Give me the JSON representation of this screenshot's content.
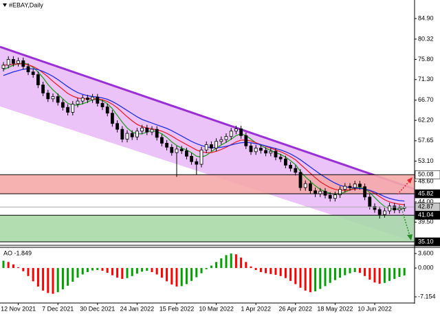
{
  "chart_data": [
    {
      "type": "candlestick",
      "title": "#EBAY,Daily",
      "categories": [
        null,
        null,
        null,
        "12 Nov 2021",
        null,
        null,
        null,
        null,
        null,
        null,
        null,
        "7 Dec 2021",
        null,
        null,
        null,
        null,
        null,
        null,
        null,
        "30 Dec 2021",
        null,
        null,
        null,
        null,
        null,
        null,
        null,
        "24 Jan 2022",
        null,
        null,
        null,
        null,
        null,
        null,
        null,
        "15 Feb 2022",
        null,
        null,
        null,
        null,
        null,
        null,
        null,
        "10 Mar 2022",
        null,
        null,
        null,
        null,
        null,
        null,
        null,
        "1 Apr 2022",
        null,
        null,
        null,
        null,
        null,
        null,
        null,
        "26 Apr 2022",
        null,
        null,
        null,
        null,
        null,
        null,
        null,
        "18 May 2022",
        null,
        null,
        null,
        null,
        null,
        null,
        null,
        "10 Jun 2022",
        null,
        null,
        null,
        null,
        null,
        null
      ],
      "open": [
        73.8,
        74.5,
        75.8,
        74.9,
        75.5,
        74.2,
        73.0,
        72.4,
        70.1,
        68.3,
        67.0,
        67.5,
        66.2,
        65.1,
        64.0,
        65.8,
        66.5,
        67.2,
        66.8,
        67.4,
        66.0,
        65.2,
        63.8,
        61.5,
        60.2,
        58.0,
        59.3,
        58.5,
        59.8,
        60.5,
        59.6,
        60.2,
        58.4,
        57.1,
        56.2,
        55.0,
        55.8,
        55.4,
        54.2,
        53.0,
        52.4,
        55.6,
        56.8,
        56.0,
        57.5,
        57.9,
        58.6,
        59.8,
        60.3,
        58.8,
        56.5,
        55.2,
        56.0,
        55.5,
        54.9,
        55.3,
        54.0,
        53.6,
        52.2,
        51.5,
        50.6,
        47.2,
        48.1,
        46.5,
        45.8,
        46.4,
        45.5,
        44.8,
        45.6,
        46.8,
        47.5,
        47.2,
        48.0,
        47.4,
        45.1,
        43.0,
        42.3,
        41.2,
        42.0,
        43.1,
        42.2,
        42.6
      ],
      "high": [
        75.2,
        76.5,
        76.5,
        76.2,
        76.2,
        74.9,
        73.7,
        73.1,
        70.8,
        69.0,
        68.2,
        68.2,
        66.9,
        65.8,
        66.5,
        67.2,
        67.9,
        67.9,
        68.1,
        68.1,
        66.7,
        65.9,
        64.5,
        62.2,
        60.9,
        60.0,
        60.0,
        60.5,
        61.2,
        61.2,
        60.9,
        60.9,
        59.1,
        57.8,
        56.9,
        56.5,
        56.5,
        56.1,
        54.9,
        53.7,
        56.3,
        57.5,
        57.5,
        58.2,
        58.6,
        59.3,
        60.5,
        61.0,
        61.0,
        59.5,
        57.2,
        56.7,
        56.7,
        56.2,
        56.0,
        56.0,
        54.7,
        54.3,
        52.9,
        52.2,
        51.3,
        48.8,
        48.8,
        47.2,
        47.1,
        47.1,
        46.2,
        46.3,
        47.5,
        48.2,
        48.2,
        48.7,
        48.7,
        48.1,
        45.8,
        43.7,
        43.0,
        42.7,
        43.8,
        43.8,
        43.3,
        43.6
      ],
      "low": [
        73.1,
        73.8,
        74.2,
        74.2,
        73.5,
        72.3,
        71.7,
        69.4,
        67.6,
        66.3,
        66.3,
        65.5,
        64.4,
        63.3,
        63.3,
        65.1,
        65.8,
        66.1,
        66.1,
        65.3,
        64.5,
        63.1,
        60.8,
        59.5,
        57.3,
        57.3,
        57.8,
        57.8,
        59.1,
        58.9,
        58.9,
        57.7,
        56.4,
        55.5,
        54.3,
        49.6,
        54.7,
        53.5,
        52.3,
        50.1,
        51.7,
        54.9,
        55.3,
        55.3,
        56.8,
        57.2,
        57.9,
        59.1,
        58.1,
        55.8,
        54.5,
        54.5,
        54.8,
        54.2,
        54.2,
        53.3,
        52.9,
        51.5,
        50.8,
        49.9,
        46.5,
        46.5,
        45.8,
        45.1,
        45.1,
        44.8,
        44.1,
        44.1,
        44.9,
        46.1,
        46.5,
        46.5,
        46.7,
        44.4,
        42.3,
        41.6,
        40.3,
        40.5,
        41.3,
        41.5,
        41.5,
        41.9
      ],
      "close": [
        74.5,
        75.8,
        74.9,
        75.5,
        74.2,
        73.0,
        72.4,
        70.1,
        68.3,
        67.0,
        67.5,
        66.2,
        65.1,
        64.0,
        65.8,
        66.5,
        67.2,
        66.8,
        67.4,
        66.0,
        65.2,
        63.8,
        61.5,
        60.2,
        58.0,
        59.3,
        58.5,
        59.8,
        60.5,
        59.6,
        60.2,
        58.4,
        57.1,
        56.2,
        55.0,
        55.8,
        55.4,
        54.2,
        53.0,
        52.4,
        55.6,
        56.8,
        56.0,
        57.5,
        57.9,
        58.6,
        59.8,
        60.3,
        58.8,
        56.5,
        55.2,
        56.0,
        55.5,
        54.9,
        55.3,
        54.0,
        53.6,
        52.2,
        51.5,
        50.6,
        47.2,
        48.1,
        46.5,
        45.8,
        46.4,
        45.5,
        44.8,
        45.6,
        46.8,
        47.5,
        47.2,
        48.0,
        47.4,
        45.1,
        43.0,
        42.3,
        41.2,
        42.0,
        43.1,
        42.2,
        42.6,
        42.9
      ],
      "candle_color": "#000000",
      "moving_averages": [
        {
          "color": "#22a022",
          "values": [
            73.5,
            74.0,
            74.5,
            74.8,
            75.0,
            74.7,
            74.0,
            73.0,
            71.7,
            70.2,
            69.0,
            68.0,
            67.0,
            66.0,
            65.6,
            65.6,
            65.9,
            66.3,
            66.8,
            66.9,
            66.6,
            65.9,
            64.8,
            63.3,
            61.8,
            60.5,
            59.6,
            59.2,
            59.2,
            59.6,
            59.9,
            59.7,
            59.2,
            58.4,
            57.4,
            56.6,
            56.0,
            55.6,
            55.0,
            54.2,
            54.0,
            54.4,
            55.2,
            56.0,
            56.7,
            57.3,
            58.0,
            58.8,
            59.2,
            58.8,
            58.0,
            57.2,
            56.6,
            56.0,
            55.5,
            55.0,
            54.6,
            54.0,
            53.2,
            52.3,
            50.8,
            49.6,
            48.6,
            47.6,
            46.8,
            46.3,
            45.9,
            45.7,
            45.8,
            46.2,
            46.7,
            47.1,
            47.3,
            46.9,
            46.1,
            45.0,
            43.9,
            43.0,
            42.5,
            42.4,
            42.4,
            42.6
          ]
        },
        {
          "color": "#e8202a",
          "values": [
            74.5,
            74.6,
            74.7,
            74.8,
            74.8,
            74.6,
            74.2,
            73.6,
            72.8,
            71.9,
            70.9,
            70.0,
            69.1,
            68.2,
            67.6,
            67.2,
            67.0,
            67.0,
            67.0,
            67.0,
            66.8,
            66.4,
            65.8,
            65.0,
            64.0,
            63.0,
            62.1,
            61.3,
            60.8,
            60.5,
            60.3,
            60.1,
            59.8,
            59.3,
            58.7,
            58.0,
            57.4,
            56.8,
            56.2,
            55.6,
            55.2,
            55.0,
            55.0,
            55.3,
            55.7,
            56.2,
            56.8,
            57.4,
            57.8,
            57.8,
            57.6,
            57.2,
            56.8,
            56.4,
            56.0,
            55.6,
            55.2,
            54.7,
            54.1,
            53.4,
            52.4,
            51.4,
            50.4,
            49.4,
            48.5,
            47.8,
            47.2,
            46.8,
            46.6,
            46.6,
            46.7,
            46.9,
            47.0,
            46.9,
            46.5,
            45.9,
            45.2,
            44.5,
            44.0,
            43.7,
            43.5,
            43.4
          ]
        },
        {
          "color": "#1f2ee0",
          "values": [
            72.2,
            72.6,
            73.0,
            73.3,
            73.6,
            73.7,
            73.7,
            73.5,
            73.1,
            72.6,
            72.0,
            71.3,
            70.5,
            69.7,
            69.0,
            68.4,
            68.0,
            67.7,
            67.5,
            67.4,
            67.2,
            66.9,
            66.4,
            65.8,
            65.1,
            64.4,
            63.7,
            63.0,
            62.4,
            62.0,
            61.6,
            61.2,
            60.8,
            60.4,
            59.9,
            59.3,
            58.7,
            58.1,
            57.5,
            57.0,
            56.6,
            56.3,
            56.1,
            56.1,
            56.2,
            56.4,
            56.7,
            57.0,
            57.2,
            57.3,
            57.2,
            57.0,
            56.8,
            56.5,
            56.2,
            55.9,
            55.6,
            55.2,
            54.7,
            54.1,
            53.4,
            52.6,
            51.8,
            51.0,
            50.2,
            49.5,
            48.8,
            48.2,
            47.7,
            47.4,
            47.2,
            47.1,
            47.0,
            46.9,
            46.6,
            46.2,
            45.7,
            45.2,
            44.8,
            44.5,
            44.3,
            44.2
          ]
        }
      ],
      "channel": {
        "upper": [
          78.6,
          46.9
        ],
        "lower": [
          65.3,
          35.1
        ],
        "color": "#9a2fd6",
        "fill": "#e7b9f7"
      },
      "zones": [
        {
          "from": 45.82,
          "to": 50.08,
          "color": "#f5a9a9"
        },
        {
          "from": 35.1,
          "to": 41.04,
          "color": "#a9d9a9"
        }
      ],
      "levels": [
        50.08,
        45.82,
        42.87,
        41.04,
        {
          "value": 35.1,
          "label": "35.10"
        }
      ],
      "ylim": [
        34.64,
        89.04
      ],
      "yticks": [
        {
          "value": 84.9,
          "label": "84.90"
        },
        80.32,
        {
          "value": 75.8,
          "label": "75.80"
        },
        {
          "value": 71.3,
          "label": "71.30"
        },
        {
          "value": 66.7,
          "label": "66.70"
        },
        {
          "value": 62.2,
          "label": "62.20"
        },
        57.65,
        {
          "value": 53.1,
          "label": "53.10"
        },
        {
          "value": 48.6,
          "label": "48.60"
        },
        {
          "value": 44.0,
          "label": "44.00"
        },
        {
          "value": 39.5,
          "label": "39.50"
        }
      ]
    },
    {
      "type": "bar",
      "title": "AO -1.849",
      "values": [
        1.8,
        1.5,
        0.9,
        0.2,
        -0.8,
        -2.0,
        -3.3,
        -4.6,
        -5.6,
        -6.2,
        -6.4,
        -6.0,
        -5.3,
        -4.4,
        -3.4,
        -2.4,
        -1.6,
        -1.0,
        -0.6,
        -0.5,
        -0.7,
        -1.2,
        -1.8,
        -2.4,
        -2.7,
        -2.5,
        -2.0,
        -1.4,
        -0.9,
        -0.7,
        -1.0,
        -1.6,
        -2.4,
        -3.3,
        -4.1,
        -4.6,
        -4.5,
        -4.0,
        -3.2,
        -2.3,
        -1.3,
        -0.3,
        0.6,
        1.5,
        2.4,
        3.2,
        3.6,
        3.4,
        2.6,
        1.5,
        0.4,
        -0.5,
        -1.0,
        -1.3,
        -1.5,
        -1.7,
        -2.0,
        -2.5,
        -3.2,
        -4.0,
        -4.9,
        -5.6,
        -6.0,
        -5.8,
        -5.2,
        -4.5,
        -3.7,
        -3.0,
        -2.4,
        -1.8,
        -1.3,
        -1.0,
        -1.2,
        -2.0,
        -2.9,
        -3.6,
        -3.9,
        -3.7,
        -3.2,
        -2.7,
        -2.2,
        -1.849
      ],
      "up_color": "#00a000",
      "down_color": "#ff0000",
      "ylim": [
        -8.52,
        4.79
      ],
      "yticks": [
        {
          "value": 3.6,
          "label": "3.600"
        },
        {
          "value": 0,
          "label": "0.000"
        },
        -7.154
      ]
    }
  ]
}
